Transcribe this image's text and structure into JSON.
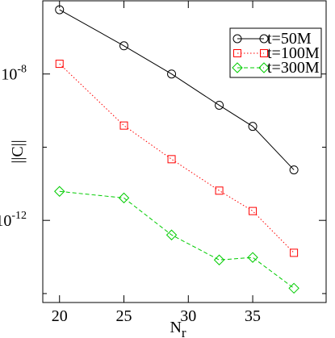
{
  "chart_data": {
    "type": "line",
    "log_y": true,
    "x_label": {
      "base": "N",
      "subscript": "r"
    },
    "y_label": "||C||",
    "x": [
      20,
      25,
      28.7,
      32.4,
      35.0,
      38.2
    ],
    "series": [
      {
        "name": "t=50M",
        "color": "#000000",
        "dash": "solid",
        "marker": "circle",
        "values": [
          5.7e-07,
          5.9e-08,
          1e-08,
          1.4e-09,
          3.7e-10,
          2.4e-11
        ]
      },
      {
        "name": "t=100M",
        "color": "#ff0000",
        "dash": "dotted",
        "marker": "square",
        "values": [
          1.9e-08,
          3.9e-10,
          4.7e-11,
          6.5e-12,
          1.8e-12,
          1.3e-13
        ]
      },
      {
        "name": "t=300M",
        "color": "#00cc00",
        "dash": "dashed",
        "marker": "diamond",
        "values": [
          6.2e-12,
          4.1e-12,
          4e-13,
          8.3e-14,
          9.7e-14,
          1.4e-14
        ]
      }
    ],
    "xlim": [
      18.7,
      40.7
    ],
    "xticks": [
      20,
      25,
      30,
      35
    ],
    "ylim": [
      1e-06,
      5.7e-15
    ],
    "yticks": [
      {
        "value": 1e-08,
        "label": "10",
        "exponent": "-8"
      },
      {
        "value": 1e-12,
        "label": "10",
        "exponent": "-12"
      }
    ],
    "yminor_ticks": [
      1e-14,
      1e-10
    ],
    "legend": "top-right",
    "grid": false
  }
}
